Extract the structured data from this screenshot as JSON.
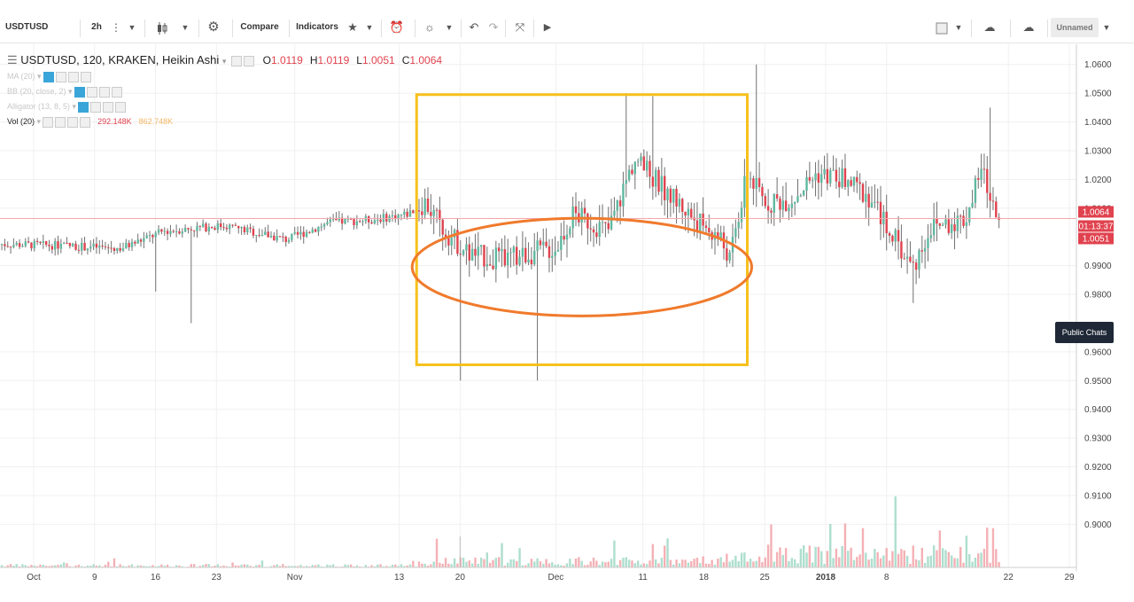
{
  "toolbar": {
    "symbol": "USDTUSD",
    "interval": "2h",
    "compare_label": "Compare",
    "indicators_label": "Indicators",
    "layout_name": "Unnamed"
  },
  "legend": {
    "title": "USDTUSD, 120, KRAKEN, Heikin Ashi",
    "ohlc": [
      {
        "label": "O",
        "value": "1.0119"
      },
      {
        "label": "H",
        "value": "1.0119"
      },
      {
        "label": "L",
        "value": "1.0051"
      },
      {
        "label": "C",
        "value": "1.0064"
      }
    ],
    "indicators": [
      {
        "name": "MA (20)",
        "faint": true,
        "values": []
      },
      {
        "name": "BB (20, close, 2)",
        "faint": true,
        "values": []
      },
      {
        "name": "Alligator (13, 8, 5)",
        "faint": true,
        "values": []
      },
      {
        "name": "Vol (20)",
        "faint": false,
        "values": [
          "292.148K",
          "862.748K"
        ]
      }
    ]
  },
  "public_chats_label": "Public Chats",
  "colors": {
    "up": "#5fb8a0",
    "down": "#e0424e",
    "wick": "#707070",
    "rect_annotation": "#f7c11c",
    "ellipse_annotation": "#f07a2c",
    "last_price_line": "#f4a7ac",
    "price_tag": "#e0424e"
  },
  "chart_data": {
    "type": "candlestick",
    "chart_style": "Heikin Ashi",
    "timeframe": "120",
    "y_axis": {
      "ylim": [
        0.885,
        1.067
      ],
      "ticks": [
        "1.0600",
        "1.0500",
        "1.0400",
        "1.0300",
        "1.0200",
        "1.0100",
        "0.9900",
        "0.9800",
        "0.9600",
        "0.9500",
        "0.9400",
        "0.9300",
        "0.9200",
        "0.9100",
        "0.9000"
      ]
    },
    "x_axis": {
      "ticks": [
        "Oct",
        "9",
        "16",
        "23",
        "Nov",
        "13",
        "20",
        "Dec",
        "11",
        "18",
        "25",
        "2018",
        "8",
        "22",
        "29"
      ],
      "bold_ticks": [
        "2018"
      ]
    },
    "price_labels": [
      {
        "value": "1.0064",
        "kind": "last"
      },
      {
        "value": "01:13:37",
        "kind": "countdown"
      },
      {
        "value": "1.0051",
        "kind": "low"
      }
    ],
    "last_price": 1.0064,
    "series_anchors": [
      [
        "Sep 28",
        0.9975
      ],
      [
        "Oct 5",
        0.997
      ],
      [
        "Oct 12",
        0.996
      ],
      [
        "Oct 17",
        1.002
      ],
      [
        "Oct 24",
        1.004
      ],
      [
        "Oct 31",
        0.999
      ],
      [
        "Nov 5",
        1.005
      ],
      [
        "Nov 10",
        1.006
      ],
      [
        "Nov 14",
        1.008
      ],
      [
        "Nov 16",
        1.012
      ],
      [
        "Nov 18",
        1.003
      ],
      [
        "Nov 21",
        0.994
      ],
      [
        "Nov 25",
        0.992
      ],
      [
        "Nov 29",
        0.995
      ],
      [
        "Dec 1",
        0.996
      ],
      [
        "Dec 3",
        1.008
      ],
      [
        "Dec 7",
        1.002
      ],
      [
        "Dec 10",
        1.027
      ],
      [
        "Dec 14",
        1.015
      ],
      [
        "Dec 17",
        1.006
      ],
      [
        "Dec 20",
        0.999
      ],
      [
        "Dec 21",
        0.992
      ],
      [
        "Dec 23",
        1.022
      ],
      [
        "Dec 25",
        1.012
      ],
      [
        "Dec 28",
        1.013
      ],
      [
        "Dec 31",
        1.022
      ],
      [
        "Jan 3",
        1.02
      ],
      [
        "Jan 6",
        1.014
      ],
      [
        "Jan 9",
        0.999
      ],
      [
        "Jan 11",
        0.989
      ],
      [
        "Jan 13",
        1.003
      ],
      [
        "Jan 15",
        1.005
      ],
      [
        "Jan 17",
        1.006
      ],
      [
        "Jan 19",
        1.024
      ],
      [
        "Jan 20",
        1.011
      ],
      [
        "Jan 21",
        1.0064
      ]
    ],
    "notable_highs": [
      [
        "Nov 15",
        1.025
      ],
      [
        "Dec 9",
        1.05
      ],
      [
        "Dec 12",
        1.049
      ],
      [
        "Dec 24",
        1.06
      ],
      [
        "Jan 20",
        1.045
      ]
    ],
    "notable_lows": [
      [
        "Oct 16",
        0.981
      ],
      [
        "Oct 20",
        0.97
      ],
      [
        "Nov 20",
        0.95
      ],
      [
        "Nov 29",
        0.95
      ],
      [
        "Jan 11",
        0.977
      ]
    ],
    "volume": {
      "label": "Vol (20)",
      "values": [
        "292.148K",
        "862.748K"
      ]
    },
    "annotations": [
      {
        "type": "rectangle",
        "color": "#f7c11c",
        "x_range": [
          "Nov 15",
          "Dec 23"
        ],
        "y_range": [
          0.9555,
          1.0495
        ]
      },
      {
        "type": "ellipse",
        "color": "#f07a2c",
        "center": [
          "Dec 4",
          0.9895
        ],
        "x_span": [
          "Nov 15",
          "Dec 23"
        ],
        "y_span": [
          0.9725,
          1.0065
        ]
      }
    ]
  }
}
